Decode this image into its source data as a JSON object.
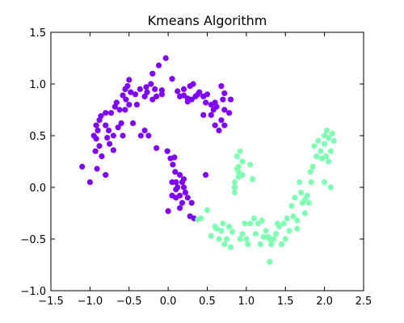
{
  "chart_data": {
    "type": "scatter",
    "title": "Kmeans Algorithm",
    "xlabel": "",
    "ylabel": "",
    "xlim": [
      -1.5,
      2.5
    ],
    "ylim": [
      -1.0,
      1.5
    ],
    "xticks": [
      -1.5,
      -1.0,
      -0.5,
      0.0,
      0.5,
      1.0,
      1.5,
      2.0,
      2.5
    ],
    "xtick_labels": [
      "−1.5",
      "−1.0",
      "−0.5",
      "0.0",
      "0.5",
      "1.0",
      "1.5",
      "2.0",
      "2.5"
    ],
    "yticks": [
      -1.0,
      -0.5,
      0.0,
      0.5,
      1.0,
      1.5
    ],
    "ytick_labels": [
      "−1.0",
      "−0.5",
      "0.0",
      "0.5",
      "1.0",
      "1.5"
    ],
    "grid": false,
    "series": [
      {
        "color": "#7F00FF",
        "points": [
          [
            -1.1,
            0.2
          ],
          [
            -1.0,
            0.05
          ],
          [
            -0.91,
            0.18
          ],
          [
            -0.93,
            0.35
          ],
          [
            -0.88,
            0.4
          ],
          [
            -0.92,
            0.47
          ],
          [
            -0.95,
            0.5
          ],
          [
            -0.9,
            0.55
          ],
          [
            -0.92,
            0.6
          ],
          [
            -0.88,
            0.65
          ],
          [
            -0.86,
            0.69
          ],
          [
            -0.8,
            0.6
          ],
          [
            -0.78,
            0.48
          ],
          [
            -0.76,
            0.55
          ],
          [
            -0.8,
            0.72
          ],
          [
            -0.73,
            0.72
          ],
          [
            -0.7,
            0.5
          ],
          [
            -0.68,
            0.78
          ],
          [
            -0.66,
            0.82
          ],
          [
            -0.62,
            0.75
          ],
          [
            -0.6,
            0.62
          ],
          [
            -0.55,
            0.75
          ],
          [
            -0.58,
            0.89
          ],
          [
            -0.54,
            0.85
          ],
          [
            -0.5,
            0.8
          ],
          [
            -0.48,
            0.92
          ],
          [
            -0.52,
            0.98
          ],
          [
            -0.55,
            0.95
          ],
          [
            -0.5,
            1.04
          ],
          [
            -0.42,
            0.9
          ],
          [
            -0.4,
            0.8
          ],
          [
            -0.36,
            0.95
          ],
          [
            -0.3,
            0.88
          ],
          [
            -0.28,
            0.97
          ],
          [
            -0.27,
            0.92
          ],
          [
            -0.22,
            1.0
          ],
          [
            -0.2,
            1.1
          ],
          [
            -0.17,
            0.95
          ],
          [
            -0.12,
            1.18
          ],
          [
            -0.08,
            0.94
          ],
          [
            -0.03,
            1.25
          ],
          [
            0.05,
            1.05
          ],
          [
            0.12,
            0.93
          ],
          [
            0.15,
            0.88
          ],
          [
            0.2,
            0.89
          ],
          [
            0.2,
            0.95
          ],
          [
            0.25,
            0.86
          ],
          [
            0.25,
            0.83
          ],
          [
            0.28,
            0.98
          ],
          [
            0.3,
            0.85
          ],
          [
            0.35,
            0.88
          ],
          [
            0.32,
            1.0
          ],
          [
            0.38,
            0.9
          ],
          [
            0.4,
            0.92
          ],
          [
            0.45,
            0.88
          ],
          [
            0.48,
            0.82
          ],
          [
            0.5,
            0.9
          ],
          [
            0.55,
            0.8
          ],
          [
            0.58,
            0.75
          ],
          [
            0.6,
            0.82
          ],
          [
            0.62,
            0.78
          ],
          [
            0.68,
            0.65
          ],
          [
            0.72,
            0.6
          ],
          [
            0.78,
            0.72
          ],
          [
            0.7,
            0.85
          ],
          [
            0.72,
            0.91
          ],
          [
            0.68,
            0.98
          ],
          [
            0.8,
            0.85
          ],
          [
            -0.15,
            0.38
          ],
          [
            -0.01,
            0.35
          ],
          [
            0.03,
            0.28
          ],
          [
            0.08,
            0.29
          ],
          [
            0.06,
            0.22
          ],
          [
            0.09,
            0.15
          ],
          [
            0.1,
            0.05
          ],
          [
            0.05,
            0.05
          ],
          [
            0.12,
            0.0
          ],
          [
            0.15,
            0.12
          ],
          [
            0.18,
            0.05
          ],
          [
            0.2,
            0.0
          ],
          [
            0.2,
            0.08
          ],
          [
            0.22,
            -0.05
          ],
          [
            0.15,
            -0.08
          ],
          [
            0.1,
            -0.1
          ],
          [
            0.05,
            -0.08
          ],
          [
            0.1,
            -0.02
          ],
          [
            0.25,
            -0.1
          ],
          [
            0.3,
            -0.15
          ],
          [
            0.18,
            -0.15
          ],
          [
            0.15,
            -0.2
          ],
          [
            0.0,
            -0.23
          ],
          [
            0.28,
            -0.28
          ],
          [
            0.33,
            -0.3
          ],
          [
            0.48,
            0.12
          ],
          [
            0.55,
            0.7
          ],
          [
            0.45,
            0.7
          ],
          [
            0.6,
            0.6
          ],
          [
            0.65,
            0.55
          ],
          [
            0.72,
            0.75
          ],
          [
            -0.35,
            0.5
          ],
          [
            -0.3,
            0.55
          ],
          [
            -0.25,
            0.5
          ],
          [
            -0.64,
            0.58
          ],
          [
            -0.75,
            0.42
          ],
          [
            -0.7,
            0.36
          ],
          [
            -0.58,
            0.5
          ],
          [
            -0.45,
            0.62
          ],
          [
            -0.15,
            0.88
          ],
          [
            -0.2,
            0.85
          ],
          [
            -0.08,
            0.9
          ],
          [
            -0.85,
            0.3
          ],
          [
            -0.8,
            0.12
          ]
        ]
      },
      {
        "color": "#80FFB4",
        "points": [
          [
            0.38,
            -0.31
          ],
          [
            0.42,
            -0.3
          ],
          [
            0.5,
            -0.22
          ],
          [
            0.55,
            -0.47
          ],
          [
            0.6,
            -0.38
          ],
          [
            0.62,
            -0.4
          ],
          [
            0.65,
            -0.5
          ],
          [
            0.68,
            -0.42
          ],
          [
            0.7,
            -0.35
          ],
          [
            0.72,
            -0.55
          ],
          [
            0.75,
            -0.5
          ],
          [
            0.78,
            -0.38
          ],
          [
            0.8,
            -0.58
          ],
          [
            0.82,
            -0.43
          ],
          [
            0.85,
            0.05
          ],
          [
            0.85,
            -0.05
          ],
          [
            0.88,
            0.3
          ],
          [
            0.88,
            0.18
          ],
          [
            0.9,
            0.2
          ],
          [
            0.9,
            0.15
          ],
          [
            0.92,
            -0.5
          ],
          [
            0.92,
            0.35
          ],
          [
            0.95,
            0.25
          ],
          [
            0.95,
            0.12
          ],
          [
            0.95,
            -0.45
          ],
          [
            0.98,
            -0.35
          ],
          [
            1.0,
            -0.5
          ],
          [
            1.02,
            -0.55
          ],
          [
            1.05,
            -0.35
          ],
          [
            1.05,
            0.22
          ],
          [
            1.08,
            0.08
          ],
          [
            1.1,
            -0.3
          ],
          [
            1.12,
            -0.45
          ],
          [
            1.15,
            -0.35
          ],
          [
            1.18,
            -0.55
          ],
          [
            1.2,
            -0.32
          ],
          [
            1.22,
            -0.48
          ],
          [
            1.25,
            -0.42
          ],
          [
            1.28,
            -0.48
          ],
          [
            1.3,
            -0.5
          ],
          [
            1.3,
            -0.72
          ],
          [
            1.32,
            -0.55
          ],
          [
            1.35,
            -0.5
          ],
          [
            1.38,
            -0.45
          ],
          [
            1.4,
            -0.35
          ],
          [
            1.42,
            -0.38
          ],
          [
            1.45,
            -0.55
          ],
          [
            1.48,
            -0.35
          ],
          [
            1.5,
            -0.5
          ],
          [
            1.52,
            -0.3
          ],
          [
            1.55,
            -0.42
          ],
          [
            1.58,
            -0.18
          ],
          [
            1.6,
            -0.28
          ],
          [
            1.62,
            -0.1
          ],
          [
            1.65,
            -0.32
          ],
          [
            1.68,
            0.05
          ],
          [
            1.7,
            -0.05
          ],
          [
            1.72,
            -0.15
          ],
          [
            1.75,
            -0.12
          ],
          [
            1.78,
            -0.08
          ],
          [
            1.8,
            -0.15
          ],
          [
            1.82,
            0.15
          ],
          [
            1.83,
            0.05
          ],
          [
            1.85,
            0.2
          ],
          [
            1.87,
            0.4
          ],
          [
            1.9,
            0.3
          ],
          [
            1.92,
            0.45
          ],
          [
            1.95,
            0.35
          ],
          [
            1.97,
            0.28
          ],
          [
            2.0,
            0.42
          ],
          [
            2.0,
            0.5
          ],
          [
            2.0,
            0.05
          ],
          [
            2.02,
            0.3
          ],
          [
            2.03,
            0.55
          ],
          [
            2.05,
            0.48
          ],
          [
            2.05,
            0.25
          ],
          [
            2.08,
            0.0
          ],
          [
            2.08,
            0.35
          ],
          [
            2.1,
            0.52
          ],
          [
            2.12,
            0.45
          ],
          [
            1.75,
            -0.25
          ],
          [
            1.65,
            -0.4
          ],
          [
            0.85,
            0.0
          ],
          [
            0.9,
            0.1
          ]
        ]
      }
    ]
  }
}
